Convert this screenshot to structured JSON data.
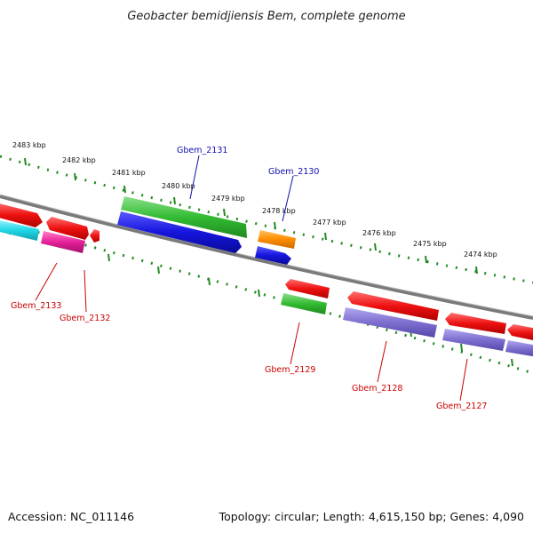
{
  "title": "Geobacter bemidjiensis Bem, complete genome",
  "footer": {
    "accession": "Accession: NC_011146",
    "topology": "Topology: circular; Length: 4,615,150 bp; Genes: 4,090"
  },
  "ruler_ticks": [
    "2483 kbp",
    "2482 kbp",
    "2481 kbp",
    "2480 kbp",
    "2479 kbp",
    "2478 kbp",
    "2477 kbp",
    "2476 kbp",
    "2475 kbp",
    "2474 kbp"
  ],
  "gene_labels": {
    "top": [
      "Gbem_2131",
      "Gbem_2130"
    ],
    "bottom": [
      "Gbem_2133",
      "Gbem_2132",
      "Gbem_2129",
      "Gbem_2128",
      "Gbem_2127"
    ]
  },
  "colors": {
    "backbone": "#808080",
    "tick": "#228b22",
    "red": "#ee1111",
    "green": "#33bb33",
    "blue": "#1515dd",
    "orange": "#ff8c00",
    "magenta": "#e6209a",
    "cyan": "#20d8e8",
    "purple": "#7d6fd0",
    "label_top": "#1010b0",
    "label_bottom": "#cc0000"
  }
}
